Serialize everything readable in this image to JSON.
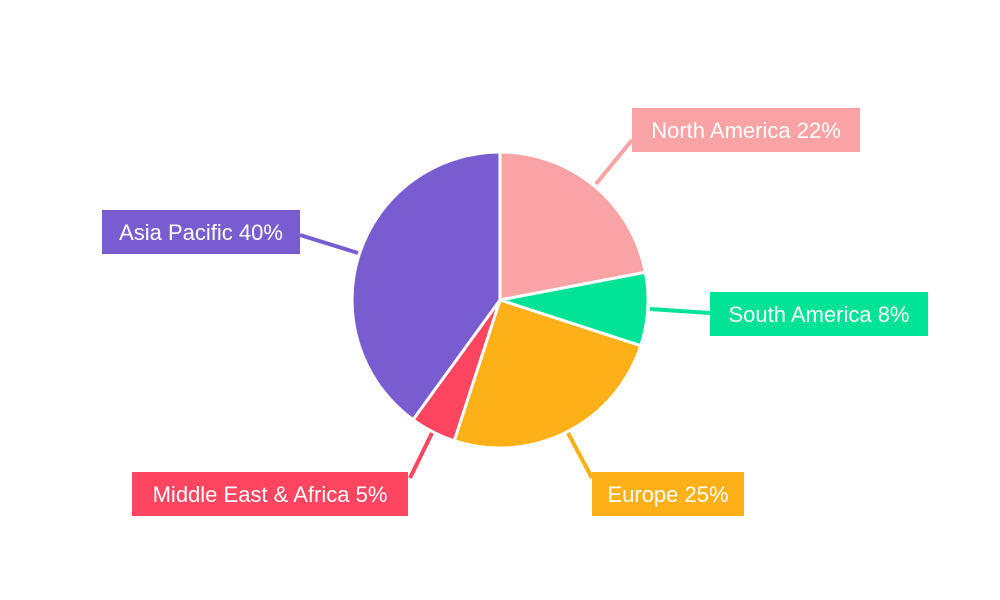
{
  "chart_data": {
    "type": "pie",
    "title": "",
    "start": "top-clockwise",
    "slices": [
      {
        "label": "North America",
        "value": 22,
        "text": "North America 22%",
        "color": "#F9A3A4"
      },
      {
        "label": "South America",
        "value": 8,
        "text": "South America 8%",
        "color": "#00E396"
      },
      {
        "label": "Europe",
        "value": 25,
        "text": "Europe 25%",
        "color": "#FEB019"
      },
      {
        "label": "Middle East & Africa",
        "value": 5,
        "text": "Middle East & Africa 5%",
        "color": "#FF4560"
      },
      {
        "label": "Asia Pacific",
        "value": 40,
        "text": "Asia Pacific 40%",
        "color": "#775DD0"
      }
    ]
  }
}
